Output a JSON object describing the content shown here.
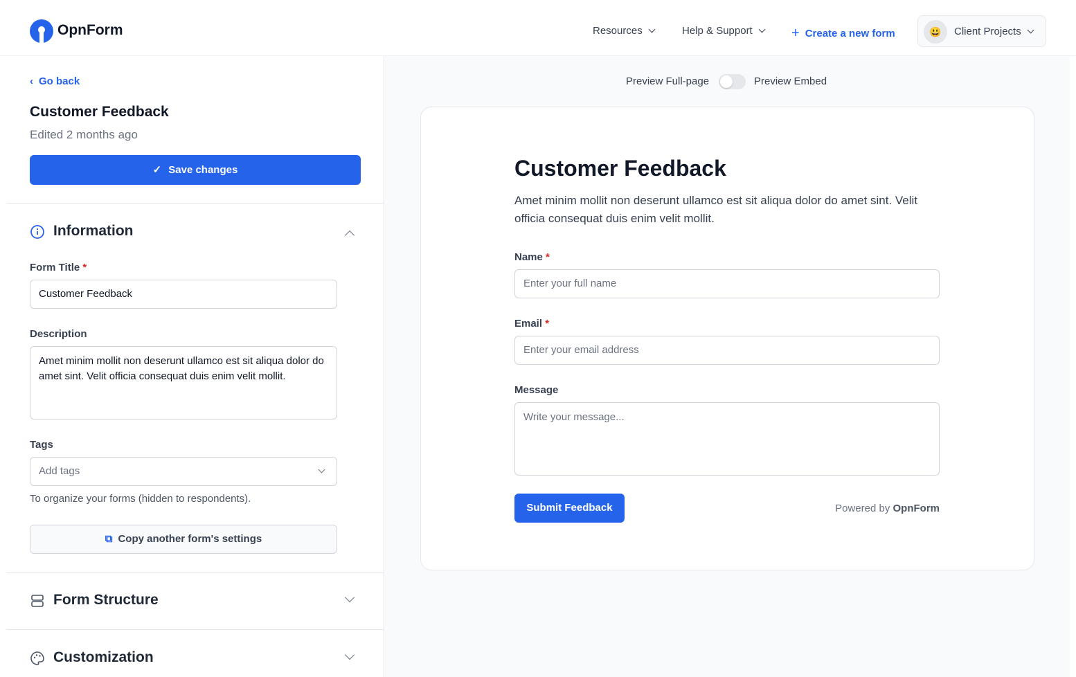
{
  "header": {
    "brand": "OpnForm",
    "nav": [
      {
        "label": "Resources"
      },
      {
        "label": "Help & Support"
      }
    ],
    "create_label": "Create a new form",
    "workspace": {
      "emoji": "😃",
      "label": "Client Projects"
    }
  },
  "sidebar": {
    "back_label": "Go back",
    "title": "Customer Feedback",
    "edited": "Edited 2 months ago",
    "save_label": "Save changes",
    "sections": [
      {
        "label": "Information",
        "icon": "info-icon",
        "expanded": true
      },
      {
        "label": "Form Structure",
        "icon": "rows-icon",
        "expanded": false
      },
      {
        "label": "Customization",
        "icon": "palette-icon",
        "expanded": false
      }
    ],
    "form_title_label": "Form Title",
    "form_title_value": "Customer Feedback",
    "description_label": "Description",
    "description_value": "Amet minim mollit non deserunt ullamco est sit aliqua dolor do amet sint. Velit officia consequat duis enim velit mollit.",
    "tags_label": "Tags",
    "tags_placeholder": "Add tags",
    "tags_help": "To organize your forms (hidden to respondents).",
    "copy_label": "Copy another form's settings",
    "required_mark": "*"
  },
  "preview": {
    "full_label": "Preview Full-page",
    "embed_label": "Preview Embed",
    "embed_on": false,
    "title": "Customer Feedback",
    "description": "Amet minim mollit non deserunt ullamco est sit aliqua dolor do amet sint. Velit officia consequat duis enim velit mollit.",
    "fields": [
      {
        "label": "Name",
        "required": true,
        "placeholder": "Enter your full name"
      },
      {
        "label": "Email",
        "required": true,
        "placeholder": "Enter your email address"
      },
      {
        "label": "Message",
        "required": false,
        "placeholder": "Write your message..."
      }
    ],
    "submit_label": "Submit Feedback",
    "powered_prefix": "Powered by",
    "powered_brand": "OpnForm"
  },
  "colors": {
    "accent": "#2563eb",
    "required": "#dc2626"
  }
}
